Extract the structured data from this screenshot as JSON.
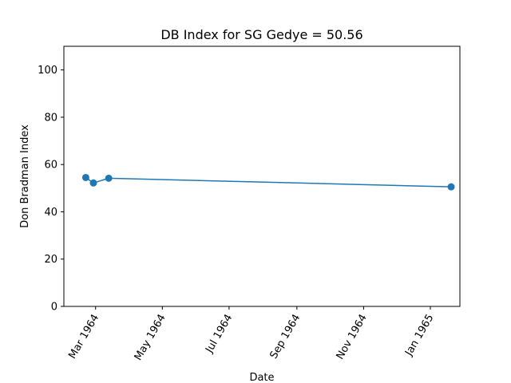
{
  "chart_data": {
    "type": "line",
    "title": "DB Index for SG Gedye = 50.56",
    "xlabel": "Date",
    "ylabel": "Don Bradman Index",
    "ylim": [
      0,
      110
    ],
    "xlim": [
      "1964-02-01",
      "1965-01-28"
    ],
    "grid": false,
    "y_ticks": [
      0,
      20,
      40,
      60,
      80,
      100
    ],
    "x_ticks": [
      {
        "date": "1964-03-01",
        "label": "Mar 1964"
      },
      {
        "date": "1964-05-01",
        "label": "May 1964"
      },
      {
        "date": "1964-07-01",
        "label": "Jul 1964"
      },
      {
        "date": "1964-09-01",
        "label": "Sep 1964"
      },
      {
        "date": "1964-11-01",
        "label": "Nov 1964"
      },
      {
        "date": "1965-01-01",
        "label": "Jan 1965"
      }
    ],
    "series": [
      {
        "color": "#1f77b4",
        "x": [
          "1964-02-21",
          "1964-02-28",
          "1964-03-13",
          "1965-01-20"
        ],
        "y": [
          54.5,
          52.2,
          54.2,
          50.56
        ]
      }
    ]
  }
}
